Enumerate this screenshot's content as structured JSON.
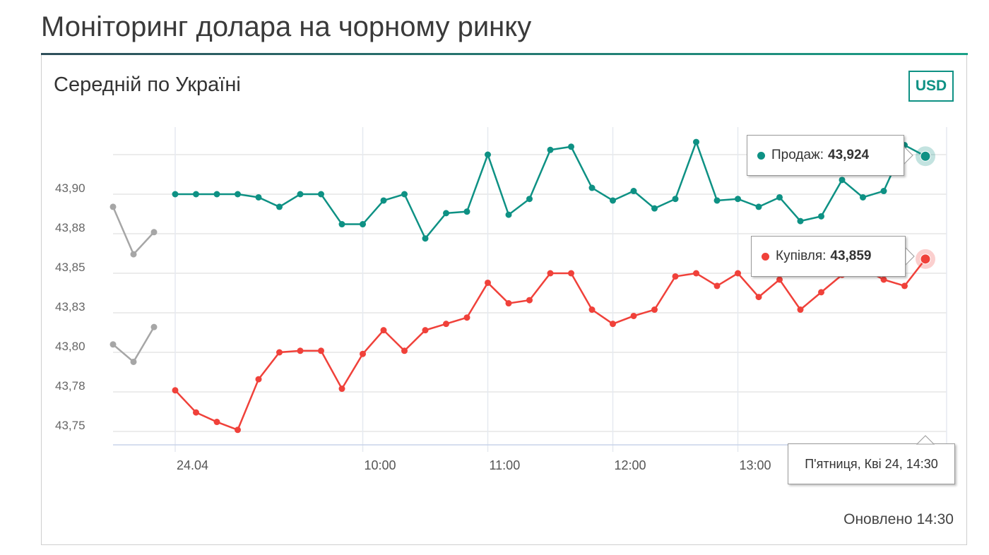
{
  "header": {
    "title": "Моніторинг долара на чорному ринку"
  },
  "card": {
    "subtitle": "Середній по Україні",
    "currency_button": "USD",
    "updated": "Оновлено 14:30"
  },
  "colors": {
    "sell": "#0e9184",
    "buy": "#f0413a",
    "previous": "#a6a6a6",
    "accent": "#0e9184"
  },
  "tooltip": {
    "sell_label": "Продаж:",
    "sell_value": "43,924",
    "buy_label": "Купівля:",
    "buy_value": "43,859",
    "date": "П'ятниця, Кві 24, 14:30"
  },
  "chart_data": {
    "type": "line",
    "ylim": [
      43.74,
      43.94
    ],
    "yticks": [
      43.75,
      43.775,
      43.8,
      43.825,
      43.85,
      43.875,
      43.9
    ],
    "ytick_labels": [
      "43,75",
      "43,78",
      "43,80",
      "43,83",
      "43,85",
      "43,88",
      "43,90"
    ],
    "xtick_labels": [
      {
        "at": "08:30",
        "label": "24.04"
      },
      {
        "at": "10:00",
        "label": "10:00"
      },
      {
        "at": "11:00",
        "label": "11:00"
      },
      {
        "at": "12:00",
        "label": "12:00"
      },
      {
        "at": "13:00",
        "label": "13:00"
      }
    ],
    "grid": true,
    "x": [
      "08:30",
      "08:40",
      "08:50",
      "09:00",
      "09:10",
      "09:20",
      "09:30",
      "09:40",
      "09:50",
      "10:00",
      "10:10",
      "10:20",
      "10:30",
      "10:40",
      "10:50",
      "11:00",
      "11:10",
      "11:20",
      "11:30",
      "11:40",
      "11:50",
      "12:00",
      "12:10",
      "12:20",
      "12:30",
      "12:40",
      "12:50",
      "13:00",
      "13:10",
      "13:20",
      "13:30",
      "13:40",
      "13:50",
      "14:00",
      "14:10",
      "14:20",
      "14:30"
    ],
    "series": [
      {
        "name": "Продаж",
        "color": "#0e9184",
        "values": [
          43.9,
          43.9,
          43.9,
          43.9,
          43.898,
          43.892,
          43.9,
          43.9,
          43.881,
          43.881,
          43.896,
          43.9,
          43.872,
          43.888,
          43.889,
          43.925,
          43.887,
          43.897,
          43.928,
          43.93,
          43.904,
          43.896,
          43.902,
          43.891,
          43.897,
          43.933,
          43.896,
          43.897,
          43.892,
          43.898,
          43.883,
          43.886,
          43.909,
          43.898,
          43.902,
          43.931,
          43.924
        ]
      },
      {
        "name": "Купівля",
        "color": "#f0413a",
        "values": [
          43.776,
          43.762,
          43.756,
          43.751,
          43.783,
          43.8,
          43.801,
          43.801,
          43.777,
          43.799,
          43.814,
          43.801,
          43.814,
          43.818,
          43.822,
          43.844,
          43.831,
          43.833,
          43.85,
          43.85,
          43.827,
          43.818,
          43.823,
          43.827,
          43.848,
          43.85,
          43.842,
          43.85,
          43.835,
          43.846,
          43.827,
          43.838,
          43.849,
          43.853,
          43.846,
          43.842,
          43.859
        ]
      }
    ],
    "previous": [
      {
        "color": "#a6a6a6",
        "values": [
          43.892,
          43.862,
          43.876
        ]
      },
      {
        "color": "#a6a6a6",
        "values": [
          43.805,
          43.794,
          43.816
        ]
      }
    ]
  }
}
